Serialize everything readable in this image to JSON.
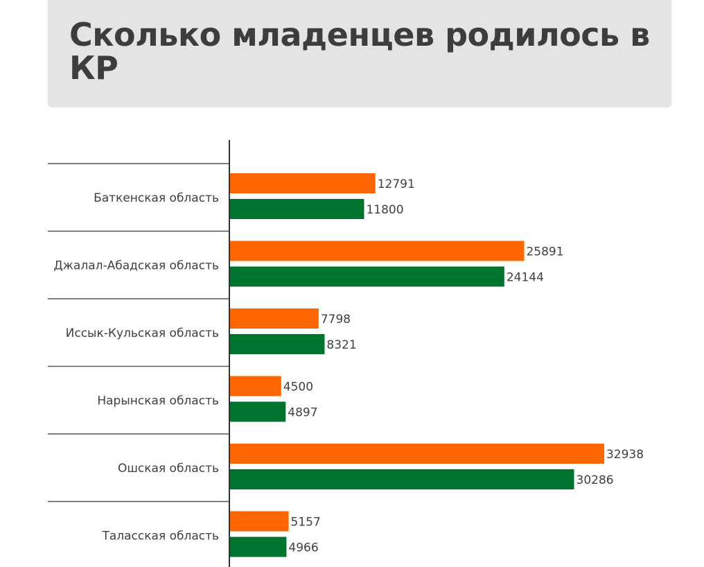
{
  "chart_data": {
    "type": "bar",
    "orientation": "horizontal",
    "title": "Сколько младенцев родилось в КР",
    "categories": [
      "Баткенская область",
      "Джалал-Абадская область",
      "Иссык-Кульская область",
      "Нарынская область",
      "Ошская область",
      "Таласская область"
    ],
    "series": [
      {
        "color": "#ff6600",
        "values": [
          12791,
          25891,
          7798,
          4500,
          32938,
          5157
        ]
      },
      {
        "color": "#00732e",
        "values": [
          11800,
          24144,
          8321,
          4897,
          30286,
          4966
        ]
      }
    ],
    "xlim": [
      0,
      33000
    ],
    "grid": false,
    "legend": "none"
  }
}
